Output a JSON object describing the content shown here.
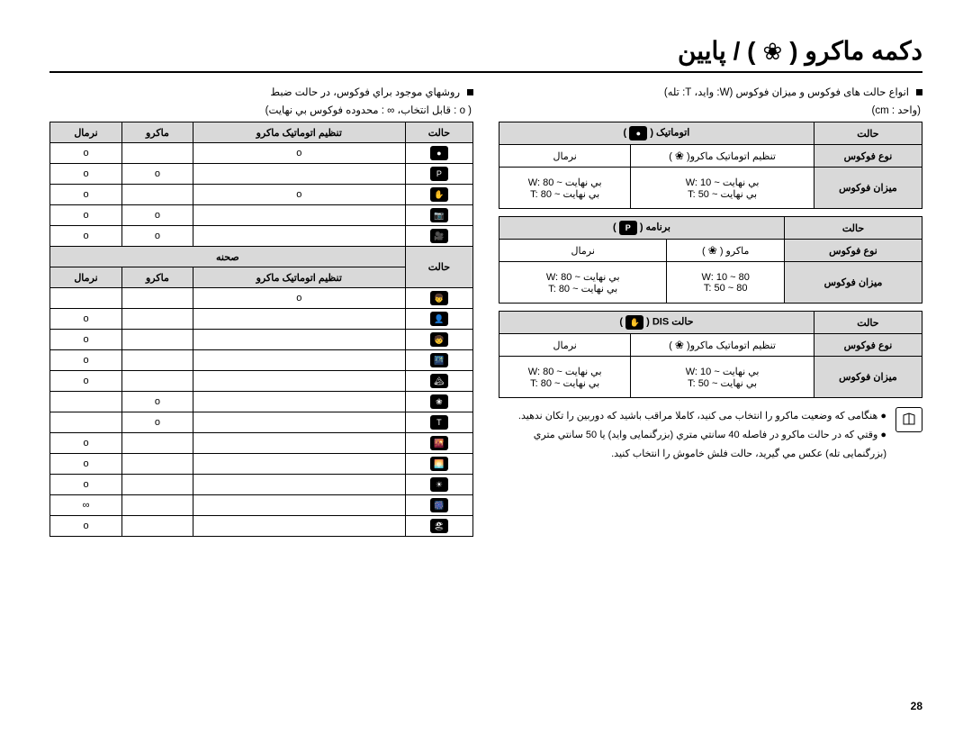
{
  "title": {
    "pre": "دكمه ماكرو (",
    "post": ") / پايين"
  },
  "pageNo": "28",
  "right": {
    "heading": "انواع حالت های فوكوس و ميزان فوكوس (W: وايد،  T: تله)",
    "unit": "(واحد : cm)",
    "tables": [
      {
        "hState": "حالت",
        "modeLabel": "اتوماتيک",
        "typeLbl": "نوع فوكوس",
        "typeA": "تنظيم اتوماتيک ماكرو",
        "typeB": "نرمال",
        "rangeLbl": "ميزان فوكوس",
        "rA1": "W: 10 ~ بي نهايت",
        "rA2": "T: 50 ~ بي نهايت",
        "rB1": "W: 80 ~ بي نهايت",
        "rB2": "T: 80 ~ بي نهايت",
        "cam": "●"
      },
      {
        "hState": "حالت",
        "modeLabel": "برنامه",
        "typeLbl": "نوع فوكوس",
        "typeA": "ماكرو",
        "typeB": "نرمال",
        "rangeLbl": "ميزان فوكوس",
        "rA1": "W: 10 ~ 80",
        "rA2": "T: 50 ~ 80",
        "rB1": "W: 80 ~ بي نهايت",
        "rB2": "T: 80 ~ بي نهايت",
        "cam": "P"
      },
      {
        "hState": "حالت",
        "modeLabel": "حالت DIS",
        "typeLbl": "نوع فوكوس",
        "typeA": "تنظيم اتوماتيک ماكرو",
        "typeB": "نرمال",
        "rangeLbl": "ميزان فوكوس",
        "rA1": "W: 10 ~ بي نهايت",
        "rA2": "T: 50 ~ بي نهايت",
        "rB1": "W: 80 ~ بي نهايت",
        "rB2": "T: 80 ~ بي نهايت",
        "cam": "✋"
      }
    ],
    "notes": [
      "هنگامی كه وضعيت ماكرو را انتخاب می كنيد، كاملا مراقب باشيد كه دوربين را تكان ندهيد.",
      "وقتي كه در حالت ماكرو در فاصله 40 سانتي متري (بزرگنمايی وايد) يا 50 سانتي متري (بزرگنمايی تله) عكس مي گيريد، حالت فلش خاموش را انتخاب كنيد."
    ]
  },
  "left": {
    "heading": "روشهاي موجود براي فوكوس، در حالت ضبط",
    "legend": "( o : قابل انتخاب،   ∞ : محدوده فوكوس بي نهايت)",
    "hdr": {
      "state": "حالت",
      "auto": "تنظيم اتوماتيک ماكرو",
      "macro": "ماكرو",
      "normal": "نرمال"
    },
    "rowsTop": [
      {
        "i": "●",
        "a": "o",
        "m": "",
        "n": "o"
      },
      {
        "i": "P",
        "a": "",
        "m": "o",
        "n": "o"
      },
      {
        "i": "✋",
        "a": "o",
        "m": "",
        "n": "o"
      },
      {
        "i": "📷",
        "a": "",
        "m": "o",
        "n": "o"
      },
      {
        "i": "🎥",
        "a": "",
        "m": "o",
        "n": "o"
      }
    ],
    "scene": "صحنه",
    "rowsBottom": [
      {
        "i": "👦",
        "a": "o",
        "m": "",
        "n": ""
      },
      {
        "i": "👤",
        "a": "",
        "m": "",
        "n": "o"
      },
      {
        "i": "🧒",
        "a": "",
        "m": "",
        "n": "o"
      },
      {
        "i": "🌃",
        "a": "",
        "m": "",
        "n": "o"
      },
      {
        "i": "🏔",
        "a": "",
        "m": "",
        "n": "o"
      },
      {
        "i": "❀",
        "a": "",
        "m": "o",
        "n": ""
      },
      {
        "i": "T",
        "a": "",
        "m": "o",
        "n": ""
      },
      {
        "i": "🌇",
        "a": "",
        "m": "",
        "n": "o"
      },
      {
        "i": "🌅",
        "a": "",
        "m": "",
        "n": "o"
      },
      {
        "i": "☀",
        "a": "",
        "m": "",
        "n": "o"
      },
      {
        "i": "🎆",
        "a": "",
        "m": "",
        "n": "∞"
      },
      {
        "i": "🏖",
        "a": "",
        "m": "",
        "n": "o"
      }
    ]
  }
}
